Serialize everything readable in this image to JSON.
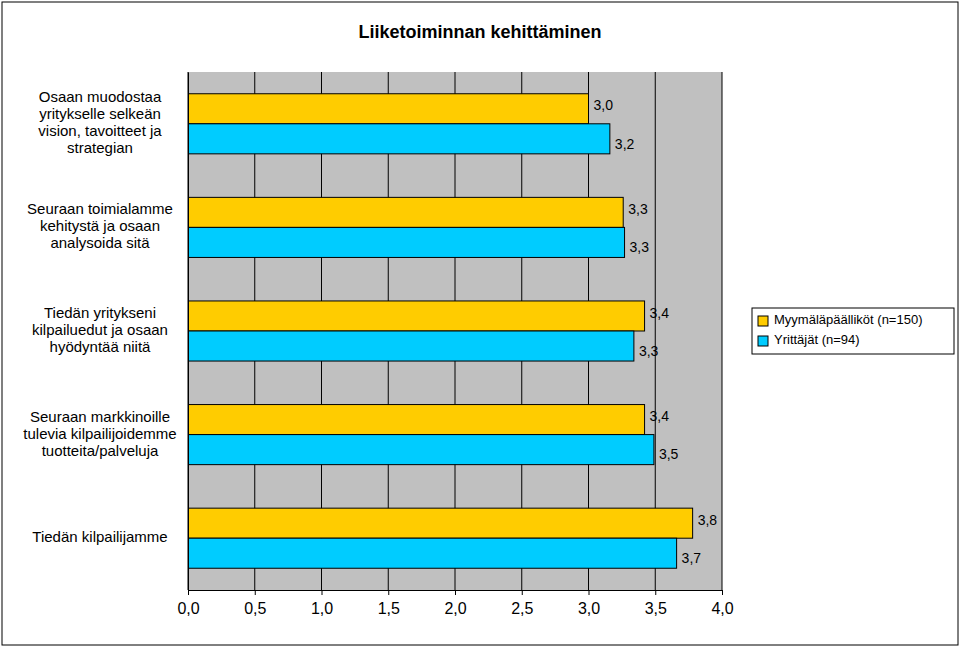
{
  "chart_data": {
    "type": "bar",
    "orientation": "horizontal",
    "title": "Liiketoiminnan kehittäminen",
    "categories": [
      "Osaan muodostaa\nyritykselle selkeän\nvision, tavoitteet ja\nstrategian",
      "Seuraan toimialamme\nkehitystä ja osaan\nanalysoida sitä",
      "Tiedän yritykseni\nkilpailuedut ja osaan\nhyödyntää niitä",
      "Seuraan markkinoille\ntulevia kilpailijoidemme\ntuotteita/palveluja",
      "Tiedän kilpailijamme"
    ],
    "series": [
      {
        "name": "Myymäläpäälliköt (n=150)",
        "color": "#FFCC00",
        "values": [
          3.0,
          3.26,
          3.42,
          3.42,
          3.78
        ],
        "value_labels": [
          "3,0",
          "3,3",
          "3,4",
          "3,4",
          "3,8"
        ]
      },
      {
        "name": "Yrittäjät (n=94)",
        "color": "#00CCFF",
        "values": [
          3.16,
          3.27,
          3.34,
          3.49,
          3.66
        ],
        "value_labels": [
          "3,2",
          "3,3",
          "3,3",
          "3,5",
          "3,7"
        ]
      }
    ],
    "xlim": [
      0,
      4
    ],
    "xticks": [
      {
        "value": 0,
        "label": "0,0"
      },
      {
        "value": 0.5,
        "label": "0,5"
      },
      {
        "value": 1,
        "label": "1,0"
      },
      {
        "value": 1.5,
        "label": "1,5"
      },
      {
        "value": 2,
        "label": "2,0"
      },
      {
        "value": 2.5,
        "label": "2,5"
      },
      {
        "value": 3,
        "label": "3,0"
      },
      {
        "value": 3.5,
        "label": "3,5"
      },
      {
        "value": 4,
        "label": "4,0"
      }
    ],
    "grid": true,
    "legend": "right",
    "data_labels": true
  }
}
